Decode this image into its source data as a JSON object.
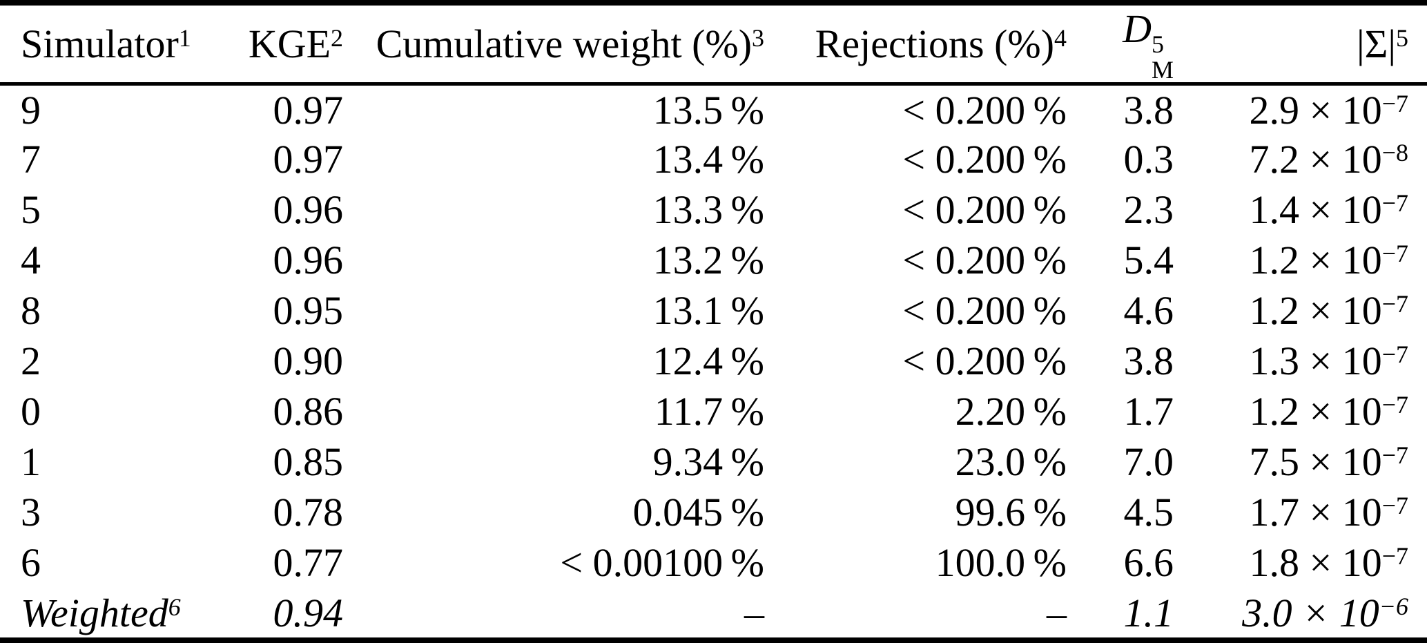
{
  "table": {
    "header": {
      "simulator": {
        "label": "Simulator",
        "sup": "1"
      },
      "kge": {
        "label": "KGE",
        "sup": "2"
      },
      "cumulative_weight": {
        "label": "Cumulative weight (%)",
        "sup": "3"
      },
      "rejections": {
        "label": "Rejections (%)",
        "sup": "4"
      },
      "dm": {
        "letter": "D",
        "sup": "5",
        "sub": "M"
      },
      "sigma": {
        "label": "|Σ|",
        "sup": "5"
      }
    },
    "rows": [
      {
        "simulator": "9",
        "kge": "0.97",
        "cumulative_weight": "13.5 %",
        "rejections": "< 0.200 %",
        "dm": "3.8",
        "sigma_base": "2.9 × 10",
        "sigma_exp": "−7"
      },
      {
        "simulator": "7",
        "kge": "0.97",
        "cumulative_weight": "13.4 %",
        "rejections": "< 0.200 %",
        "dm": "0.3",
        "sigma_base": "7.2 × 10",
        "sigma_exp": "−8"
      },
      {
        "simulator": "5",
        "kge": "0.96",
        "cumulative_weight": "13.3 %",
        "rejections": "< 0.200 %",
        "dm": "2.3",
        "sigma_base": "1.4 × 10",
        "sigma_exp": "−7"
      },
      {
        "simulator": "4",
        "kge": "0.96",
        "cumulative_weight": "13.2 %",
        "rejections": "< 0.200 %",
        "dm": "5.4",
        "sigma_base": "1.2 × 10",
        "sigma_exp": "−7"
      },
      {
        "simulator": "8",
        "kge": "0.95",
        "cumulative_weight": "13.1 %",
        "rejections": "< 0.200 %",
        "dm": "4.6",
        "sigma_base": "1.2 × 10",
        "sigma_exp": "−7"
      },
      {
        "simulator": "2",
        "kge": "0.90",
        "cumulative_weight": "12.4 %",
        "rejections": "< 0.200 %",
        "dm": "3.8",
        "sigma_base": "1.3 × 10",
        "sigma_exp": "−7"
      },
      {
        "simulator": "0",
        "kge": "0.86",
        "cumulative_weight": "11.7 %",
        "rejections": "2.20 %",
        "dm": "1.7",
        "sigma_base": "1.2 × 10",
        "sigma_exp": "−7"
      },
      {
        "simulator": "1",
        "kge": "0.85",
        "cumulative_weight": "9.34 %",
        "rejections": "23.0 %",
        "dm": "7.0",
        "sigma_base": "7.5 × 10",
        "sigma_exp": "−7"
      },
      {
        "simulator": "3",
        "kge": "0.78",
        "cumulative_weight": "0.045 %",
        "rejections": "99.6 %",
        "dm": "4.5",
        "sigma_base": "1.7 × 10",
        "sigma_exp": "−7"
      },
      {
        "simulator": "6",
        "kge": "0.77",
        "cumulative_weight": "< 0.00100 %",
        "rejections": "100.0 %",
        "dm": "6.6",
        "sigma_base": "1.8 × 10",
        "sigma_exp": "−7"
      },
      {
        "simulator": "Weighted",
        "simulator_sup": "6",
        "kge": "0.94",
        "cumulative_weight": "–",
        "rejections": "–",
        "dm": "1.1",
        "sigma_base": "3.0 × 10",
        "sigma_exp": "−6"
      }
    ]
  }
}
